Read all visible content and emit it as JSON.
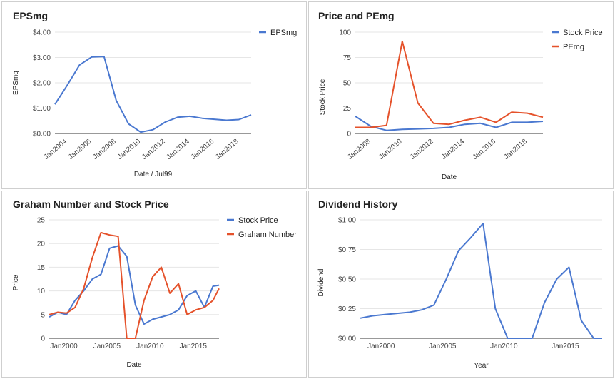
{
  "colors": {
    "blue": "#4a78d0",
    "red": "#e5522b",
    "grid": "#e6e6e6",
    "axis": "#333333"
  },
  "chart_data": [
    {
      "type": "line",
      "title": "EPSmg",
      "xlabel": "Date / Jul99",
      "ylabel": "EPSmg",
      "xlim": [
        2003.0,
        2019.0
      ],
      "ylim": [
        0,
        4
      ],
      "yticks": [
        0,
        1,
        2,
        3,
        4
      ],
      "yticklabels": [
        "$0.00",
        "$1.00",
        "$2.00",
        "$3.00",
        "$4.00"
      ],
      "xticks": [
        2004,
        2006,
        2008,
        2010,
        2012,
        2014,
        2016,
        2018
      ],
      "xticklabels": [
        "Jan2004",
        "Jan2006",
        "Jan2008",
        "Jan2010",
        "Jan2012",
        "Jan2014",
        "Jan2016",
        "Jan2018"
      ],
      "legend_position": "top-right",
      "series": [
        {
          "name": "EPSmg",
          "color": "blue",
          "x": [
            2003.0,
            2004.0,
            2005.0,
            2006.0,
            2007.0,
            2008.0,
            2009.0,
            2010.0,
            2011.0,
            2012.0,
            2013.0,
            2014.0,
            2015.0,
            2016.0,
            2017.0,
            2018.0,
            2019.0
          ],
          "y": [
            1.15,
            1.9,
            2.7,
            3.02,
            3.04,
            1.3,
            0.38,
            0.05,
            0.15,
            0.45,
            0.64,
            0.68,
            0.6,
            0.56,
            0.52,
            0.55,
            0.73
          ]
        }
      ]
    },
    {
      "type": "line",
      "title": "Price and PEmg",
      "xlabel": "Date",
      "ylabel": "Stock Price",
      "xlim": [
        2007.0,
        2019.0
      ],
      "ylim": [
        0,
        100
      ],
      "yticks": [
        0,
        25,
        50,
        75,
        100
      ],
      "yticklabels": [
        "0",
        "25",
        "50",
        "75",
        "100"
      ],
      "xticks": [
        2008,
        2010,
        2012,
        2014,
        2016,
        2018
      ],
      "xticklabels": [
        "Jan2008",
        "Jan2010",
        "Jan2012",
        "Jan2014",
        "Jan2016",
        "Jan2018"
      ],
      "legend_position": "top-right",
      "series": [
        {
          "name": "Stock Price",
          "color": "blue",
          "x": [
            2007.0,
            2008.0,
            2009.0,
            2010.0,
            2011.0,
            2012.0,
            2013.0,
            2014.0,
            2015.0,
            2016.0,
            2017.0,
            2018.0,
            2019.0
          ],
          "y": [
            17,
            7,
            3,
            4,
            4.5,
            5,
            6,
            9,
            10,
            6,
            11,
            11,
            12
          ]
        },
        {
          "name": "PEmg",
          "color": "red",
          "x": [
            2007.0,
            2008.0,
            2009.0,
            2010.0,
            2011.0,
            2012.0,
            2013.0,
            2014.0,
            2015.0,
            2016.0,
            2017.0,
            2018.0,
            2019.0
          ],
          "y": [
            6,
            6,
            8,
            91,
            30,
            10,
            9,
            13,
            16,
            11,
            21,
            20,
            16
          ]
        }
      ]
    },
    {
      "type": "line",
      "title": "Graham Number and Stock Price",
      "xlabel": "Date",
      "ylabel": "Price",
      "xlim": [
        1998.3,
        2018.0
      ],
      "ylim": [
        0,
        25
      ],
      "yticks": [
        0,
        5,
        10,
        15,
        20,
        25
      ],
      "yticklabels": [
        "0",
        "5",
        "10",
        "15",
        "20",
        "25"
      ],
      "xticks": [
        2000,
        2005,
        2010,
        2015
      ],
      "xticklabels": [
        "Jan2000",
        "Jan2005",
        "Jan2010",
        "Jan2015"
      ],
      "legend_position": "top-right",
      "series": [
        {
          "name": "Stock Price",
          "color": "blue",
          "x": [
            1998.3,
            1999.3,
            2000.3,
            2001.3,
            2002.3,
            2003.3,
            2004.3,
            2005.3,
            2006.3,
            2007.3,
            2008.3,
            2009.3,
            2010.3,
            2011.3,
            2012.3,
            2013.3,
            2014.3,
            2015.3,
            2016.3,
            2017.3,
            2018.0
          ],
          "y": [
            4.5,
            5.5,
            5,
            8,
            10,
            12.5,
            13.5,
            19,
            19.5,
            17.3,
            7,
            3,
            4,
            4.5,
            5,
            6,
            9,
            10,
            6.5,
            11,
            11.2
          ]
        },
        {
          "name": "Graham Number",
          "color": "red",
          "x": [
            1998.3,
            1999.3,
            2000.3,
            2001.3,
            2002.3,
            2003.3,
            2004.3,
            2005.3,
            2006.3,
            2007.3,
            2008.3,
            2009.3,
            2010.3,
            2011.3,
            2012.3,
            2013.3,
            2014.3,
            2015.3,
            2016.3,
            2017.3,
            2018.0
          ],
          "y": [
            5,
            5.5,
            5.3,
            6.5,
            10.5,
            17,
            22.3,
            21.8,
            21.5,
            0,
            0,
            8,
            13,
            15,
            9.5,
            11.5,
            5,
            6,
            6.5,
            8,
            10.5
          ]
        }
      ]
    },
    {
      "type": "line",
      "title": "Dividend History",
      "xlabel": "Year",
      "ylabel": "Dividend",
      "xlim": [
        1998.3,
        2018.0
      ],
      "ylim": [
        0,
        1
      ],
      "yticks": [
        0,
        0.25,
        0.5,
        0.75,
        1
      ],
      "yticklabels": [
        "$0.00",
        "$0.25",
        "$0.50",
        "$0.75",
        "$1.00"
      ],
      "xticks": [
        2000,
        2005,
        2010,
        2015
      ],
      "xticklabels": [
        "Jan2000",
        "Jan2005",
        "Jan2010",
        "Jan2015"
      ],
      "legend_position": "none",
      "series": [
        {
          "color": "blue",
          "x": [
            1998.3,
            1999.3,
            2000.3,
            2001.3,
            2002.3,
            2003.3,
            2004.3,
            2005.3,
            2006.3,
            2007.3,
            2008.3,
            2009.3,
            2010.3,
            2011.3,
            2012.3,
            2013.3,
            2014.3,
            2015.3,
            2016.3,
            2017.3,
            2018.0
          ],
          "y": [
            0.17,
            0.19,
            0.2,
            0.21,
            0.22,
            0.24,
            0.28,
            0.5,
            0.74,
            0.85,
            0.97,
            0.25,
            0,
            0,
            0,
            0.3,
            0.5,
            0.6,
            0.15,
            0,
            0
          ]
        }
      ]
    }
  ]
}
